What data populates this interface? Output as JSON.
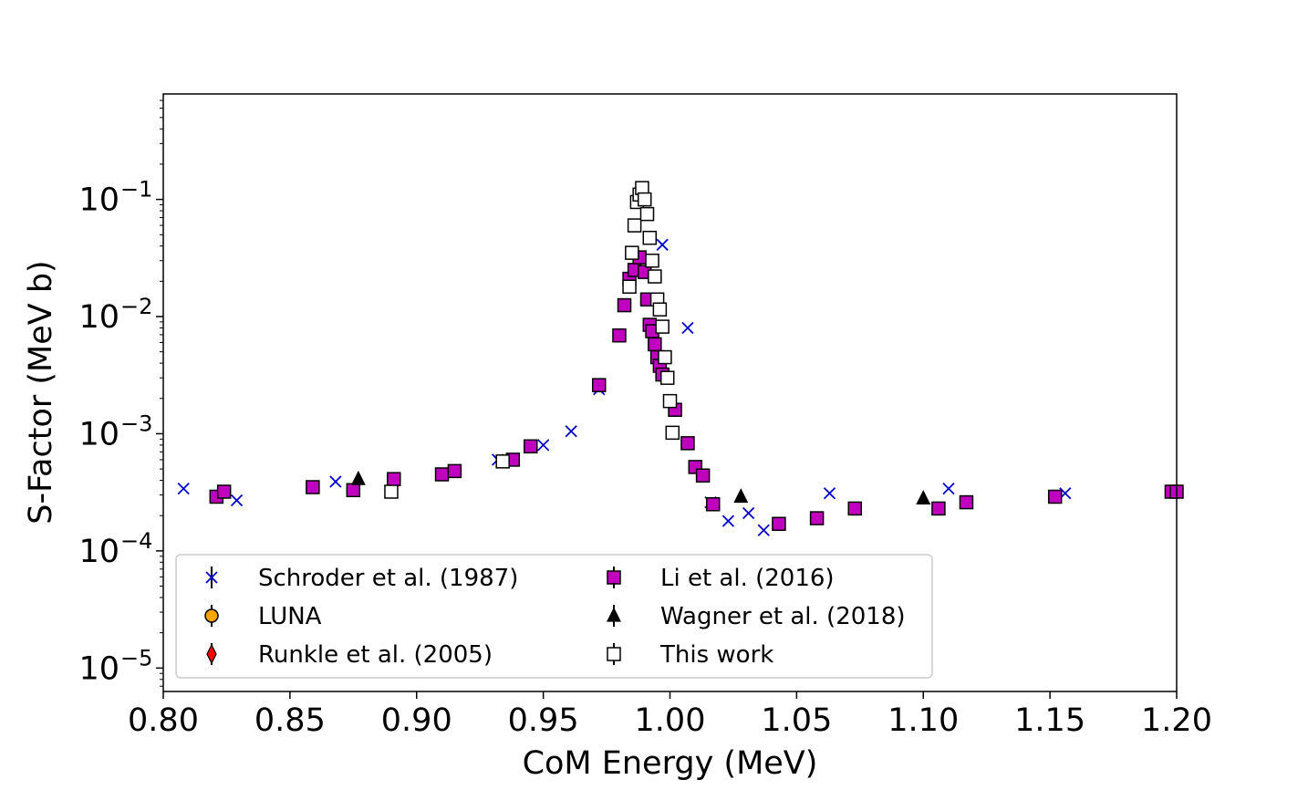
{
  "chart_data": {
    "type": "scatter",
    "title": "",
    "xlabel": "CoM Energy (MeV)",
    "ylabel": "S-Factor (MeV b)",
    "xlim": [
      0.8,
      1.2
    ],
    "ylim_log10": [
      -5.2,
      -0.1
    ],
    "y_scale": "log",
    "x_ticks": [
      "0.80",
      "0.85",
      "0.90",
      "0.95",
      "1.00",
      "1.05",
      "1.10",
      "1.15",
      "1.20"
    ],
    "y_ticks": [
      {
        "base": "10",
        "exp": "−1"
      },
      {
        "base": "10",
        "exp": "−2"
      },
      {
        "base": "10",
        "exp": "−3"
      },
      {
        "base": "10",
        "exp": "−4"
      },
      {
        "base": "10",
        "exp": "−5"
      }
    ],
    "legend_position": "lower-left",
    "series": [
      {
        "name": "Schroder et al. (1987)",
        "marker": "x",
        "color": "#0000cc",
        "x": [
          0.808,
          0.829,
          0.868,
          0.932,
          0.95,
          0.961,
          0.972,
          0.986,
          0.997,
          1.007,
          1.016,
          1.023,
          1.031,
          1.037,
          1.063,
          1.11,
          1.156
        ],
        "y": [
          0.00034,
          0.00027,
          0.00039,
          0.0006,
          0.0008,
          0.00105,
          0.0024,
          0.024,
          0.041,
          0.008,
          0.00026,
          0.00018,
          0.00021,
          0.00015,
          0.00031,
          0.00034,
          0.00031
        ]
      },
      {
        "name": "LUNA",
        "marker": "circle",
        "color": "#ffa500",
        "x": [],
        "y": []
      },
      {
        "name": "Runkle et al. (2005)",
        "marker": "diamond",
        "color": "#ff0000",
        "x": [],
        "y": []
      },
      {
        "name": "Li et al. (2016)",
        "marker": "square",
        "color": "#bf00bf",
        "x": [
          0.821,
          0.824,
          0.859,
          0.875,
          0.891,
          0.91,
          0.915,
          0.938,
          0.945,
          0.972,
          0.98,
          0.982,
          0.984,
          0.986,
          0.988,
          0.99,
          0.991,
          0.992,
          0.993,
          0.994,
          0.995,
          0.996,
          0.997,
          1.002,
          1.007,
          1.01,
          1.013,
          1.017,
          1.043,
          1.058,
          1.073,
          1.106,
          1.117,
          1.152,
          1.198,
          1.2
        ],
        "y": [
          0.00029,
          0.00032,
          0.00035,
          0.00033,
          0.00041,
          0.00045,
          0.00048,
          0.0006,
          0.00078,
          0.0026,
          0.0069,
          0.0125,
          0.021,
          0.025,
          0.032,
          0.024,
          0.014,
          0.0085,
          0.0075,
          0.0058,
          0.0045,
          0.0038,
          0.0032,
          0.0016,
          0.00083,
          0.00052,
          0.00044,
          0.00025,
          0.00017,
          0.00019,
          0.00023,
          0.00023,
          0.00026,
          0.00029,
          0.00032,
          0.00032
        ]
      },
      {
        "name": "Wagner et al. (2018)",
        "marker": "triangle",
        "color": "#000000",
        "x": [
          0.877,
          1.028,
          1.1
        ],
        "y": [
          0.00041,
          0.00029,
          0.00028
        ]
      },
      {
        "name": "This work",
        "marker": "square",
        "color": "#ffffff",
        "x": [
          0.89,
          0.934,
          0.984,
          0.985,
          0.986,
          0.987,
          0.988,
          0.989,
          0.99,
          0.991,
          0.992,
          0.993,
          0.994,
          0.995,
          0.996,
          0.997,
          0.998,
          0.999,
          1.0,
          1.001
        ],
        "y": [
          0.00032,
          0.00058,
          0.018,
          0.035,
          0.06,
          0.095,
          0.11,
          0.125,
          0.1,
          0.075,
          0.047,
          0.03,
          0.022,
          0.014,
          0.0115,
          0.0082,
          0.0045,
          0.003,
          0.0019,
          0.00102
        ]
      }
    ]
  }
}
